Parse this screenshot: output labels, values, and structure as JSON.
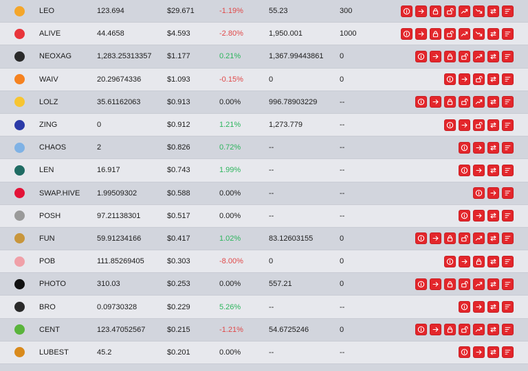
{
  "colors": {
    "positive": "#2db55d",
    "negative": "#e04848",
    "action_button": "#e3262b"
  },
  "tokens": [
    {
      "symbol": "LEO",
      "balance": "123.694",
      "price": "$29.671",
      "change": "-1.19%",
      "trend": "neg",
      "volume": "55.23",
      "stake": "300",
      "icon": "leo-token-icon",
      "icon_color": "#f4a62a",
      "actions": [
        "info",
        "transfer",
        "stake",
        "unstake",
        "delegate",
        "undelegate",
        "swap",
        "history"
      ]
    },
    {
      "symbol": "ALIVE",
      "balance": "44.4658",
      "price": "$4.593",
      "change": "-2.80%",
      "trend": "neg",
      "volume": "1,950.001",
      "stake": "1000",
      "icon": "alive-heart-icon",
      "icon_color": "#e8353b",
      "actions": [
        "info",
        "transfer",
        "stake",
        "unstake",
        "delegate",
        "undelegate",
        "swap",
        "history"
      ]
    },
    {
      "symbol": "NEOXAG",
      "balance": "1,283.25313357",
      "price": "$1.177",
      "change": "0.21%",
      "trend": "pos",
      "volume": "1,367.99443861",
      "stake": "0",
      "icon": "neoxag-dice-icon",
      "icon_color": "#2a2a2a",
      "actions": [
        "info",
        "transfer",
        "stake",
        "unstake",
        "delegate",
        "swap",
        "history"
      ]
    },
    {
      "symbol": "WAIV",
      "balance": "20.29674336",
      "price": "$1.093",
      "change": "-0.15%",
      "trend": "neg",
      "volume": "0",
      "stake": "0",
      "icon": "waiv-token-icon",
      "icon_color": "#f58220",
      "actions": [
        "info",
        "transfer",
        "unstake",
        "swap",
        "history"
      ]
    },
    {
      "symbol": "LOLZ",
      "balance": "35.61162063",
      "price": "$0.913",
      "change": "0.00%",
      "trend": "neu",
      "volume": "996.78903229",
      "stake": "--",
      "icon": "lolz-laugh-icon",
      "icon_color": "#f7c531",
      "actions": [
        "info",
        "transfer",
        "stake",
        "unstake",
        "delegate",
        "swap",
        "history"
      ]
    },
    {
      "symbol": "ZING",
      "balance": "0",
      "price": "$0.912",
      "change": "1.21%",
      "trend": "pos",
      "volume": "1,273.779",
      "stake": "--",
      "icon": "zing-z-icon",
      "icon_color": "#2b3aa8",
      "actions": [
        "info",
        "transfer",
        "unstake",
        "swap",
        "history"
      ]
    },
    {
      "symbol": "CHAOS",
      "balance": "2",
      "price": "$0.826",
      "change": "0.72%",
      "trend": "pos",
      "volume": "--",
      "stake": "--",
      "icon": "chaos-token-icon",
      "icon_color": "#7fb2e5",
      "actions": [
        "info",
        "transfer",
        "swap",
        "history"
      ]
    },
    {
      "symbol": "LEN",
      "balance": "16.917",
      "price": "$0.743",
      "change": "1.99%",
      "trend": "pos",
      "volume": "--",
      "stake": "--",
      "icon": "len-token-icon",
      "icon_color": "#1f6b63",
      "actions": [
        "info",
        "transfer",
        "swap",
        "history"
      ]
    },
    {
      "symbol": "SWAP.HIVE",
      "balance": "1.99509302",
      "price": "$0.588",
      "change": "0.00%",
      "trend": "neu",
      "volume": "--",
      "stake": "--",
      "icon": "hive-token-icon",
      "icon_color": "#e31337",
      "actions": [
        "info",
        "transfer",
        "history"
      ]
    },
    {
      "symbol": "POSH",
      "balance": "97.21138301",
      "price": "$0.517",
      "change": "0.00%",
      "trend": "neu",
      "volume": "--",
      "stake": "--",
      "icon": "posh-token-icon",
      "icon_color": "#9a9a9a",
      "actions": [
        "info",
        "transfer",
        "swap",
        "history"
      ]
    },
    {
      "symbol": "FUN",
      "balance": "59.91234166",
      "price": "$0.417",
      "change": "1.02%",
      "trend": "pos",
      "volume": "83.12603155",
      "stake": "0",
      "icon": "fun-token-icon",
      "icon_color": "#c8963c",
      "actions": [
        "info",
        "transfer",
        "stake",
        "unstake",
        "delegate",
        "swap",
        "history"
      ]
    },
    {
      "symbol": "POB",
      "balance": "111.85269405",
      "price": "$0.303",
      "change": "-8.00%",
      "trend": "neg",
      "volume": "0",
      "stake": "0",
      "icon": "pob-brain-icon",
      "icon_color": "#f0a0a8",
      "actions": [
        "info",
        "transfer",
        "stake",
        "swap",
        "history"
      ]
    },
    {
      "symbol": "PHOTO",
      "balance": "310.03",
      "price": "$0.253",
      "change": "0.00%",
      "trend": "neu",
      "volume": "557.21",
      "stake": "0",
      "icon": "photo-lens-icon",
      "icon_color": "#111111",
      "actions": [
        "info",
        "transfer",
        "stake",
        "unstake",
        "delegate",
        "swap",
        "history"
      ]
    },
    {
      "symbol": "BRO",
      "balance": "0.09730328",
      "price": "$0.229",
      "change": "5.26%",
      "trend": "pos",
      "volume": "--",
      "stake": "--",
      "icon": "bro-token-icon",
      "icon_color": "#2a2a2a",
      "actions": [
        "info",
        "transfer",
        "swap",
        "history"
      ]
    },
    {
      "symbol": "CENT",
      "balance": "123.47052567",
      "price": "$0.215",
      "change": "-1.21%",
      "trend": "neg",
      "volume": "54.6725246",
      "stake": "0",
      "icon": "cent-token-icon",
      "icon_color": "#5ab43c",
      "actions": [
        "info",
        "transfer",
        "stake",
        "unstake",
        "delegate",
        "swap",
        "history"
      ]
    },
    {
      "symbol": "LUBEST",
      "balance": "45.2",
      "price": "$0.201",
      "change": "0.00%",
      "trend": "neu",
      "volume": "--",
      "stake": "--",
      "icon": "lubest-token-icon",
      "icon_color": "#d98a1c",
      "actions": [
        "info",
        "transfer",
        "swap",
        "history"
      ]
    }
  ]
}
